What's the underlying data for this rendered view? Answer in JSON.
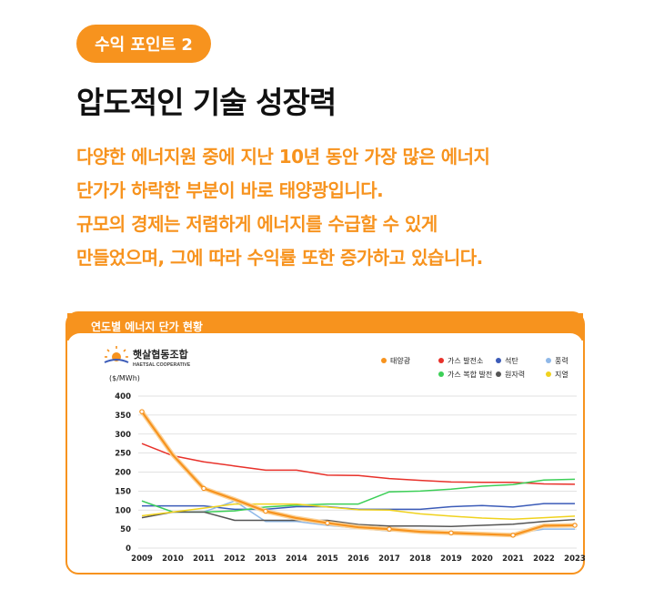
{
  "badge": "수익 포인트 2",
  "title": "압도적인 기술 성장력",
  "description": [
    "다양한 에너지원 중에 지난 10년 동안 가장 많은 에너지",
    "단가가 하락한 부분이 바로 태양광입니다.",
    "규모의 경제는 저렴하게 에너지를 수급할 수 있게",
    "만들었으며, 그에 따라 수익률 또한 증가하고 있습니다."
  ],
  "card_title": "연도별 에너지 단가 현황",
  "logo": {
    "name_ko": "햇살협동조합",
    "name_en": "HAETSAL COOPERATIVE"
  },
  "colors": {
    "accent": "#f7931e"
  },
  "chart_data": {
    "type": "line",
    "ylabel": "($/MWh)",
    "ylim": [
      0,
      400
    ],
    "yticks": [
      0,
      50,
      100,
      150,
      200,
      250,
      300,
      350,
      400
    ],
    "x": [
      "2009",
      "2010",
      "2011",
      "2012",
      "2013",
      "2014",
      "2015",
      "2016",
      "2017",
      "2018",
      "2019",
      "2020",
      "2021",
      "2022",
      "2023"
    ],
    "legend_position": "top-right",
    "series": [
      {
        "name": "태양광",
        "color": "#f7931e",
        "values": [
          359,
          245,
          157,
          128,
          97,
          79,
          66,
          55,
          50,
          43,
          40,
          37,
          34,
          59,
          60
        ]
      },
      {
        "name": "가스 발전소",
        "color": "#e8312a",
        "values": [
          275,
          243,
          227,
          216,
          205,
          205,
          192,
          191,
          183,
          178,
          174,
          173,
          173,
          169,
          168
        ]
      },
      {
        "name": "석탄",
        "color": "#3b5bb8",
        "values": [
          111,
          111,
          111,
          102,
          102,
          109,
          109,
          102,
          102,
          102,
          109,
          112,
          108,
          117,
          117
        ]
      },
      {
        "name": "풍력",
        "color": "#8fb8e8",
        "values": [
          124,
          95,
          95,
          124,
          70,
          70,
          60,
          52,
          45,
          45,
          42,
          40,
          38,
          50,
          50
        ]
      },
      {
        "name": "가스 복합 발전",
        "color": "#3ccf57",
        "values": [
          124,
          95,
          95,
          98,
          108,
          113,
          116,
          116,
          148,
          150,
          155,
          163,
          167,
          179,
          181
        ]
      },
      {
        "name": "원자력",
        "color": "#555555",
        "values": [
          80,
          95,
          95,
          73,
          73,
          73,
          73,
          62,
          58,
          58,
          57,
          60,
          63,
          70,
          75
        ]
      },
      {
        "name": "지열",
        "color": "#f0d21e",
        "values": [
          85,
          95,
          105,
          116,
          116,
          116,
          108,
          101,
          100,
          90,
          84,
          79,
          76,
          80,
          84
        ]
      }
    ]
  }
}
